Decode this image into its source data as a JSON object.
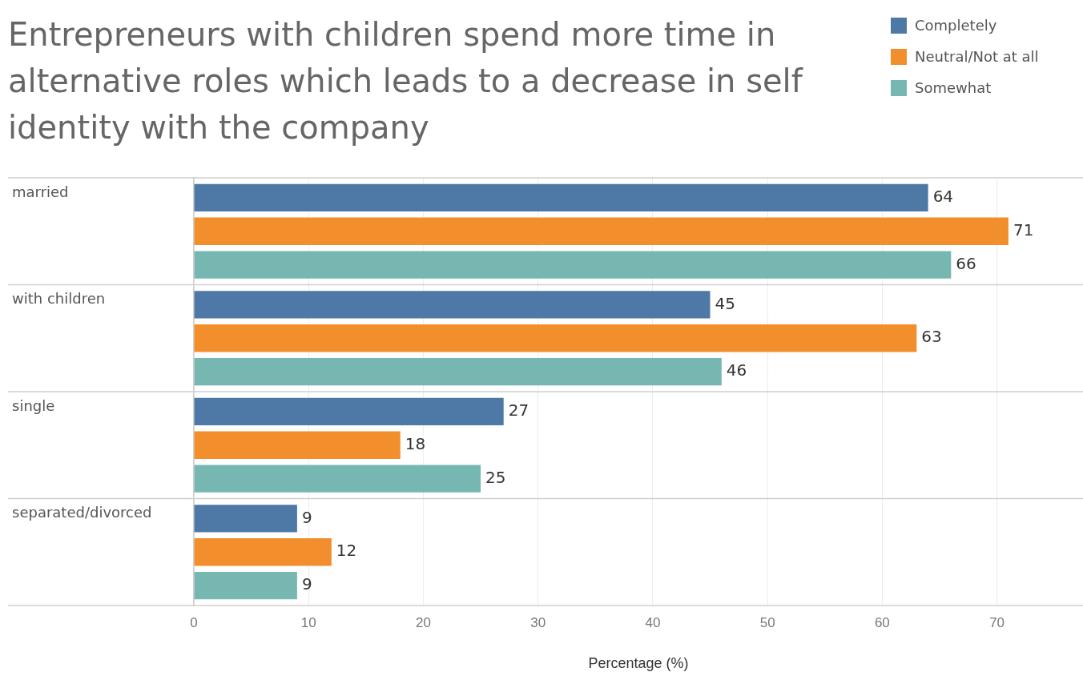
{
  "chart_data": {
    "type": "bar",
    "orientation": "horizontal",
    "title": "Entrepreneurs with children spend more time in alternative roles which leads to a decrease in self identity with the company",
    "xlabel": "Percentage (%)",
    "categories": [
      "married",
      "with children",
      "single",
      "separated/divorced"
    ],
    "series": [
      {
        "name": "Completely",
        "color": "#4e79a7",
        "values": [
          64,
          45,
          27,
          9
        ]
      },
      {
        "name": "Neutral/Not at all",
        "color": "#f28e2b",
        "values": [
          71,
          63,
          18,
          12
        ]
      },
      {
        "name": "Somewhat",
        "color": "#76b7b2",
        "values": [
          66,
          46,
          25,
          9
        ]
      }
    ],
    "xlim": [
      0,
      77.5
    ],
    "xticks": [
      0,
      10,
      20,
      30,
      40,
      50,
      60,
      70
    ],
    "grid": "x",
    "legend": "top right",
    "data_labels": true
  }
}
